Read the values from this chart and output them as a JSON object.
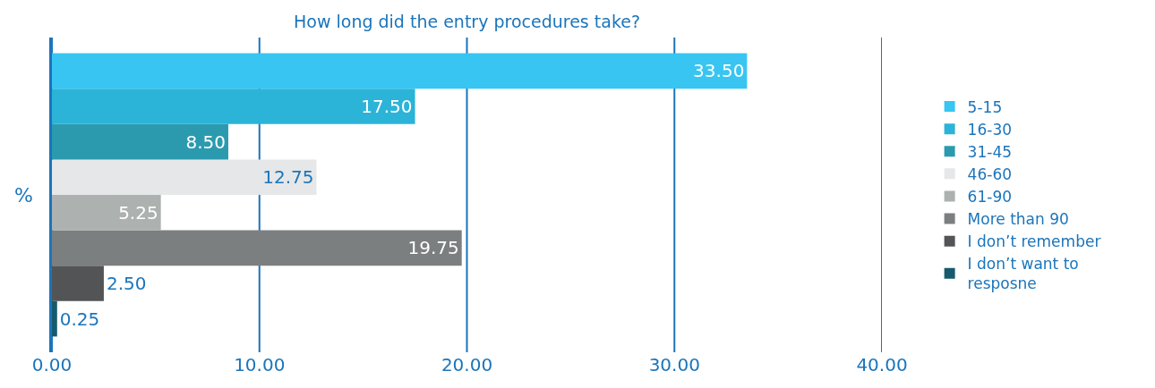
{
  "chart_data": {
    "type": "bar",
    "orientation": "horizontal",
    "title": "How long did the entry procedures take?",
    "ylabel": "%",
    "categories": [
      null
    ],
    "series": [
      {
        "name": "5-15",
        "color": "#38c5f2",
        "values": [
          33.5
        ],
        "value_labels": [
          "33.50"
        ]
      },
      {
        "name": "16-30",
        "color": "#2cb3d8",
        "values": [
          17.5
        ],
        "value_labels": [
          "17.50"
        ]
      },
      {
        "name": "31-45",
        "color": "#2b9aaf",
        "values": [
          8.5
        ],
        "value_labels": [
          "8.50"
        ]
      },
      {
        "name": "46-60",
        "color": "#e6e7e8",
        "values": [
          12.75
        ],
        "value_labels": [
          "12.75"
        ]
      },
      {
        "name": "61-90",
        "color": "#adb1b0",
        "values": [
          5.25
        ],
        "value_labels": [
          "5.25"
        ]
      },
      {
        "name": "More than 90",
        "color": "#7c7f80",
        "values": [
          19.75
        ],
        "value_labels": [
          "19.75"
        ]
      },
      {
        "name": "I don’t remember",
        "color": "#535456",
        "values": [
          2.5
        ],
        "value_labels": [
          "2.50"
        ]
      },
      {
        "name": "I don’t want to resposne",
        "color": "#175a6e",
        "values": [
          0.25
        ],
        "value_labels": [
          "0.25"
        ]
      }
    ],
    "xlim": [
      0,
      40
    ],
    "xticks": [
      {
        "value": 0,
        "label": "0.00"
      },
      {
        "value": 10,
        "label": "10.00"
      },
      {
        "value": 20,
        "label": "20.00"
      },
      {
        "value": 30,
        "label": "30.00"
      },
      {
        "value": 40,
        "label": "40.00"
      }
    ],
    "grid": "x",
    "legend": "right"
  }
}
